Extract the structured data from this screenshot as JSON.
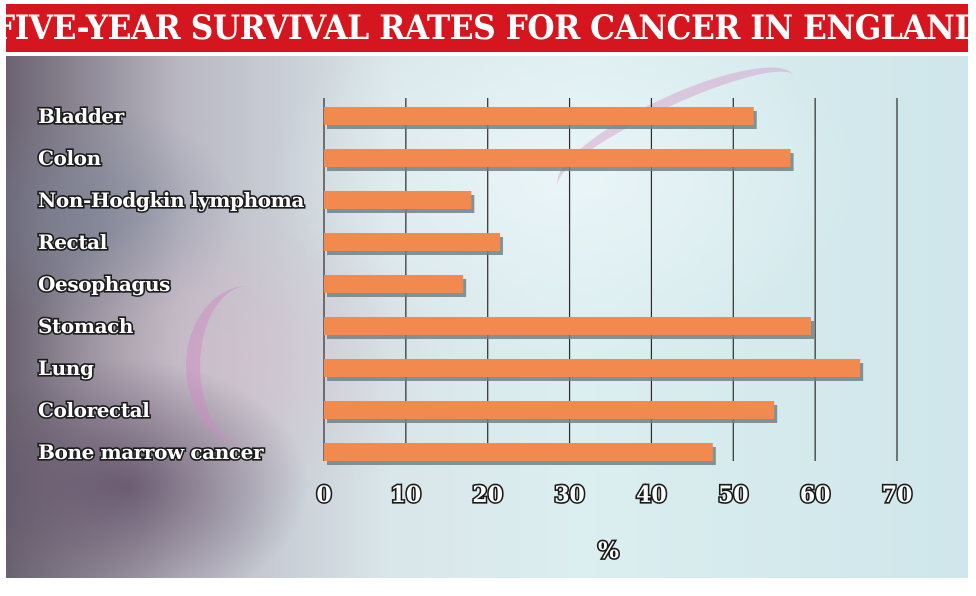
{
  "chart_data": {
    "type": "bar",
    "orientation": "horizontal",
    "title": "FIVE-YEAR SURVIVAL RATES FOR CANCER IN ENGLAND",
    "xlabel": "%",
    "ylabel": "",
    "categories": [
      "Bladder",
      "Colon",
      "Non-Hodgkin lymphoma",
      "Rectal",
      "Oesophagus",
      "Stomach",
      "Lung",
      "Colorectal",
      "Bone marrow cancer"
    ],
    "values": [
      52.5,
      57,
      18,
      21.5,
      17,
      59.5,
      65.5,
      55,
      47.5
    ],
    "xlim": [
      0,
      70
    ],
    "xticks": [
      0,
      10,
      20,
      30,
      40,
      50,
      60,
      70
    ],
    "grid": true,
    "legend": "none",
    "colors": {
      "bar": "#f2894f",
      "bar_shadow": "#6f8387",
      "title_bg": "#d6161e",
      "grid": "#2b2b2b"
    }
  }
}
